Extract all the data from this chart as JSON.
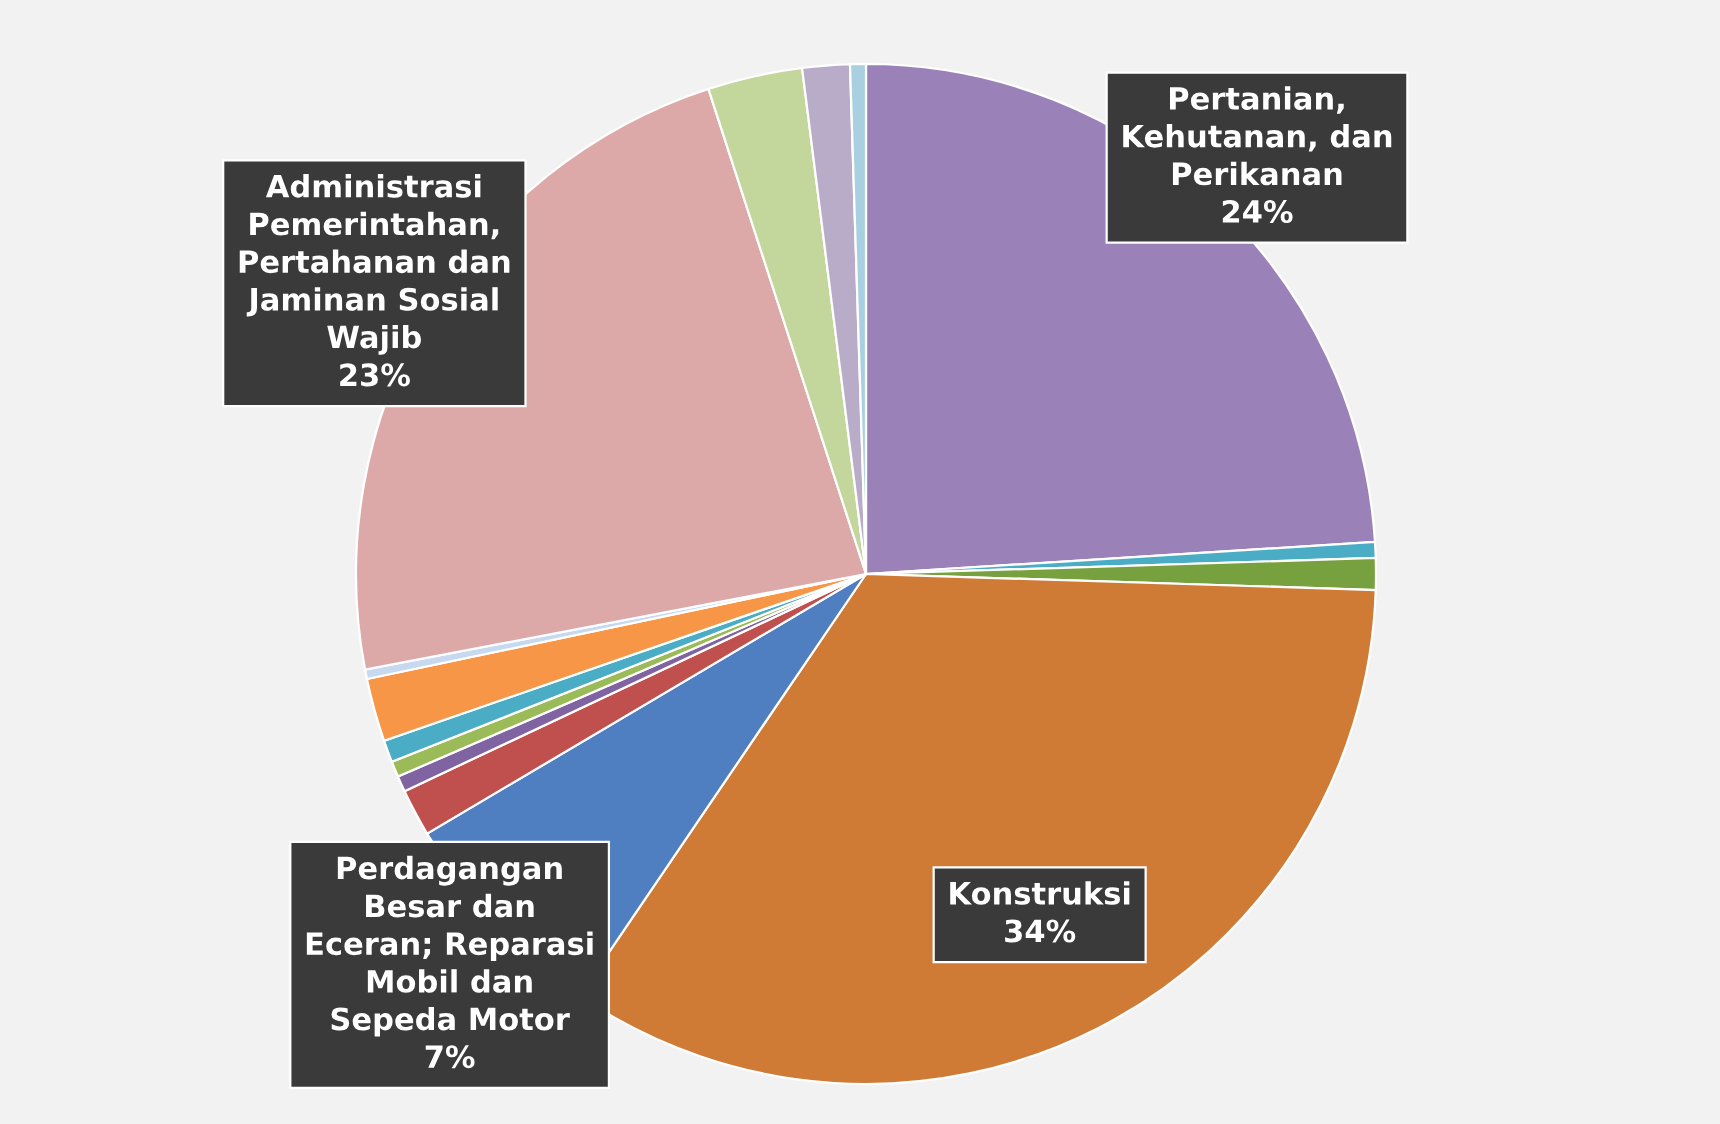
{
  "chart_data": {
    "type": "pie",
    "categories": [
      "Pertanian,\nKehutanan, dan\nPerikanan",
      null,
      null,
      "Konstruksi",
      "Perdagangan\nBesar dan\nEceran; Reparasi\nMobil dan\nSepeda Motor",
      null,
      null,
      null,
      null,
      null,
      null,
      "Administrasi\nPemerintahan,\nPertahanan dan\nJaminan Sosial\nWajib",
      null,
      null,
      null
    ],
    "values": [
      24,
      0.5,
      1,
      34,
      7,
      1.5,
      0.5,
      0.5,
      0.7,
      2,
      0.3,
      23,
      3,
      1.5,
      0.5
    ],
    "value_labels": [
      "24%",
      null,
      null,
      "34%",
      "7%",
      null,
      null,
      null,
      null,
      null,
      null,
      "23%",
      null,
      null,
      null
    ],
    "colors": [
      "#9a82b9",
      "#4bacc6",
      "#77a13e",
      "#cf7b36",
      "#4f7fc0",
      "#c0504d",
      "#8064a2",
      "#9bbb59",
      "#4bacc6",
      "#f79646",
      "#c6d9f1",
      "#dca9a8",
      "#c3d69b",
      "#b9acc9",
      "#a9d0e0"
    ]
  }
}
